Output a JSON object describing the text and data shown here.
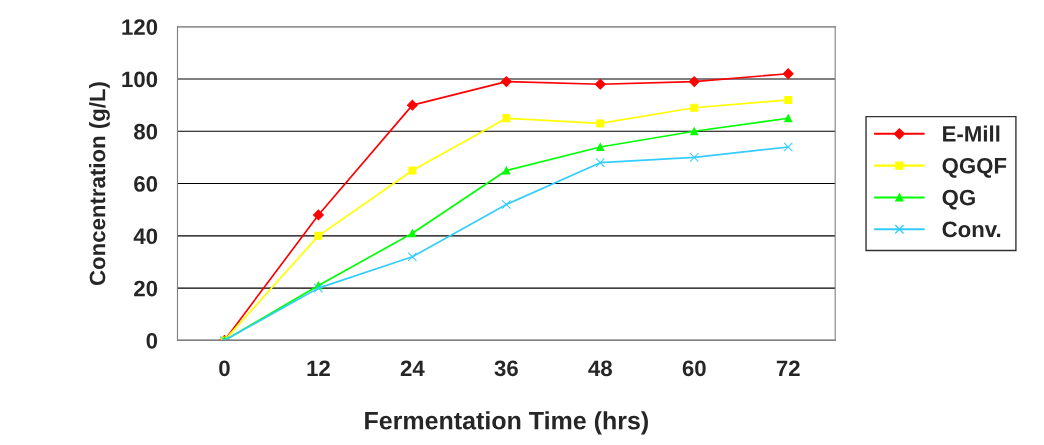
{
  "chart_data": {
    "type": "line",
    "xlabel": "Fermentation Time (hrs)",
    "ylabel": "Concentration (g/L)",
    "categories": [
      "0",
      "12",
      "24",
      "36",
      "48",
      "60",
      "72"
    ],
    "series": [
      {
        "name": "E-Mill",
        "color": "#ff0000",
        "marker": "diamond",
        "values": [
          0,
          48,
          90,
          99,
          98,
          99,
          102
        ]
      },
      {
        "name": "QGQF",
        "color": "#ffff00",
        "marker": "square",
        "values": [
          0,
          40,
          65,
          85,
          83,
          89,
          92
        ]
      },
      {
        "name": "QG",
        "color": "#00ff00",
        "marker": "triangle",
        "values": [
          0,
          21,
          41,
          65,
          74,
          80,
          85
        ]
      },
      {
        "name": "Conv.",
        "color": "#33ccff",
        "marker": "cross",
        "values": [
          0,
          20,
          32,
          52,
          68,
          70,
          74
        ]
      }
    ],
    "ylim": [
      0,
      120
    ],
    "yticks": [
      0,
      20,
      40,
      60,
      80,
      100,
      120
    ],
    "grid": "y",
    "legend": "right",
    "line_style": "solid"
  }
}
